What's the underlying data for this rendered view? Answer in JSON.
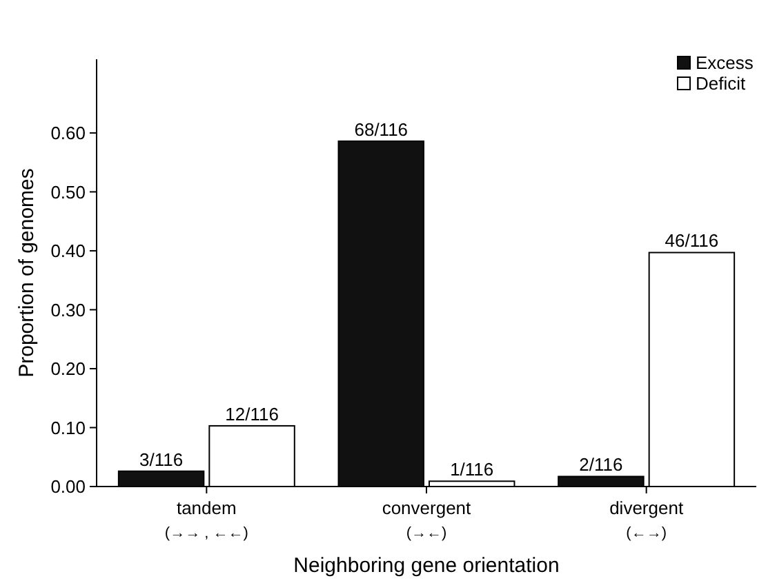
{
  "chart_data": {
    "type": "bar",
    "xlabel": "Neighboring gene orientation",
    "ylabel": "Proportion of genomes",
    "categories": [
      "tandem\n(→→ , ←←)",
      "convergent\n(→←)",
      "divergent\n(←→)"
    ],
    "series": [
      {
        "name": "Excess",
        "color": "#111111",
        "values": [
          0.026,
          0.586,
          0.017
        ],
        "value_labels": [
          "3/116",
          "68/116",
          "2/116"
        ]
      },
      {
        "name": "Deficit",
        "color": "#ffffff",
        "values": [
          0.103,
          0.009,
          0.397
        ],
        "value_labels": [
          "12/116",
          "1/116",
          "46/116"
        ]
      }
    ],
    "ylim": [
      0,
      0.725
    ],
    "yticks": [
      {
        "value": 0,
        "label": "0.00"
      },
      {
        "value": 0.1,
        "label": "0.10"
      },
      {
        "value": 0.2,
        "label": "0.20"
      },
      {
        "value": 0.3,
        "label": "0.30"
      },
      {
        "value": 0.4,
        "label": "0.40"
      },
      {
        "value": 0.5,
        "label": "0.50"
      },
      {
        "value": 0.6,
        "label": "0.60"
      }
    ],
    "legend": "top right",
    "grid": false
  }
}
